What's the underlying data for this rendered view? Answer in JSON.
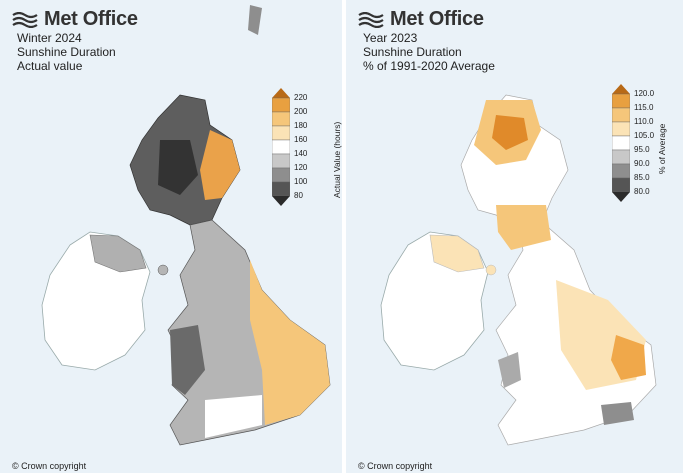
{
  "brand": {
    "name": "Met Office",
    "logo_icon": "met-office-waves-icon"
  },
  "panels": [
    {
      "title_lines": [
        "Winter 2024",
        "Sunshine Duration",
        "Actual value"
      ],
      "legend": {
        "label": "Actual Value (hours)",
        "ticks": [
          "220",
          "200",
          "180",
          "160",
          "140",
          "120",
          "100",
          "80"
        ],
        "colors": [
          "#b86a17",
          "#e8a040",
          "#f5c67a",
          "#fbe3b6",
          "#ffffff",
          "#c8c8c8",
          "#8e8e8e",
          "#555555",
          "#2b2b2b"
        ]
      },
      "copyright": "© Crown copyright"
    },
    {
      "title_lines": [
        "Year 2023",
        "Sunshine Duration",
        "% of 1991-2020 Average"
      ],
      "legend": {
        "label": "% of Average",
        "ticks": [
          "120.0",
          "115.0",
          "110.0",
          "105.0",
          "95.0",
          "90.0",
          "85.0",
          "80.0"
        ],
        "colors": [
          "#b86a17",
          "#e8a040",
          "#f5c67a",
          "#fbe3b6",
          "#ffffff",
          "#c8c8c8",
          "#8e8e8e",
          "#555555",
          "#2b2b2b"
        ]
      },
      "copyright": "© Crown copyright"
    }
  ]
}
